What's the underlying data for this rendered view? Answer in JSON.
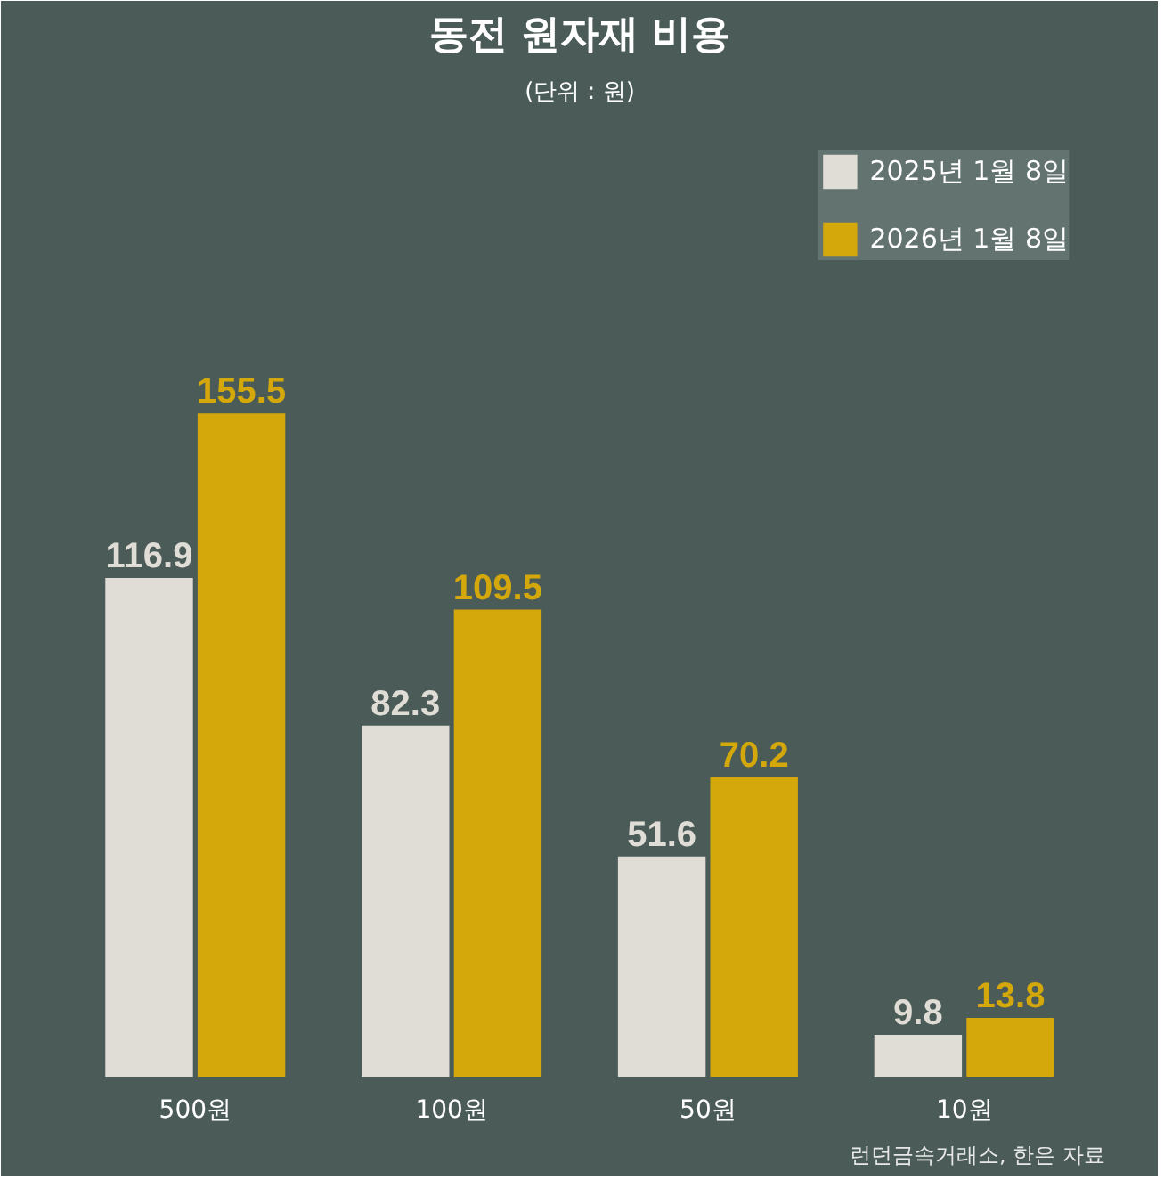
{
  "chart_data": {
    "type": "bar",
    "title": "동전 원자재 비용",
    "subtitle": "(단위 : 원)",
    "categories": [
      "500원",
      "100원",
      "50원",
      "10원"
    ],
    "series": [
      {
        "name": "2025년 1월 8일",
        "color": "#e0dcd6",
        "values": [
          116.9,
          82.3,
          51.6,
          9.8
        ]
      },
      {
        "name": "2026년 1월 8일",
        "color": "#d4a80a",
        "values": [
          155.5,
          109.5,
          70.2,
          13.8
        ]
      }
    ],
    "data_labels": true,
    "legend": "top right",
    "grid": false,
    "annotations": [
      "런던금속거래소, 한은 자료"
    ]
  }
}
